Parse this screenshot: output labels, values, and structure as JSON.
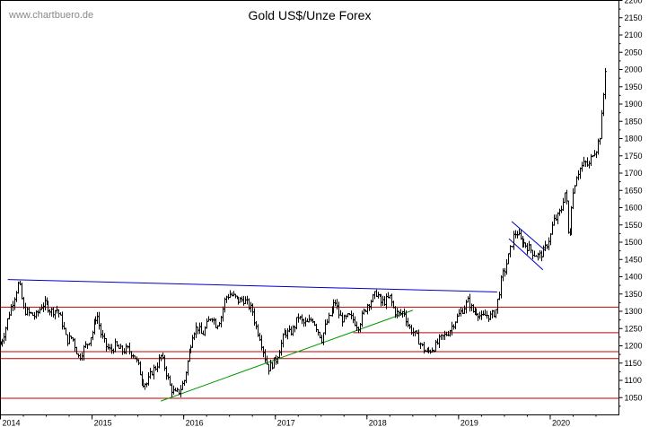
{
  "watermark": "www.chartbuero.de",
  "chart_data": {
    "type": "bar",
    "subtype": "ohlc-weekly",
    "title": "Gold US$/Unze Forex",
    "xlabel": "",
    "ylabel": "",
    "y_axis_position": "right",
    "ylim": [
      1000,
      2200
    ],
    "xlim": [
      2014.0,
      2020.75
    ],
    "yticks": [
      1050,
      1100,
      1150,
      1200,
      1250,
      1300,
      1350,
      1400,
      1450,
      1500,
      1550,
      1600,
      1650,
      1700,
      1750,
      1800,
      1850,
      1900,
      1950,
      2000,
      2050,
      2100,
      2150,
      2200
    ],
    "xticks": [
      {
        "label": "2014",
        "x": 2014.0
      },
      {
        "label": "2015",
        "x": 2015.0
      },
      {
        "label": "2016",
        "x": 2016.0
      },
      {
        "label": "2017",
        "x": 2017.0
      },
      {
        "label": "2018",
        "x": 2018.0
      },
      {
        "label": "2019",
        "x": 2019.0
      },
      {
        "label": "2020",
        "x": 2020.0
      }
    ],
    "grid": false,
    "colors": {
      "price": "#000000",
      "resistance": "#0000cc",
      "support_lines": "#c00000",
      "uptrend": "#009900",
      "channel": "#0000cc"
    },
    "series": [
      {
        "keypoints": [
          [
            2014.0,
            1205
          ],
          [
            2014.05,
            1245
          ],
          [
            2014.1,
            1300
          ],
          [
            2014.15,
            1340
          ],
          [
            2014.2,
            1385
          ],
          [
            2014.25,
            1305
          ],
          [
            2014.3,
            1295
          ],
          [
            2014.38,
            1285
          ],
          [
            2014.45,
            1320
          ],
          [
            2014.5,
            1320
          ],
          [
            2014.55,
            1300
          ],
          [
            2014.62,
            1305
          ],
          [
            2014.68,
            1260
          ],
          [
            2014.72,
            1215
          ],
          [
            2014.78,
            1225
          ],
          [
            2014.85,
            1165
          ],
          [
            2014.9,
            1190
          ],
          [
            2014.95,
            1210
          ],
          [
            2015.0,
            1240
          ],
          [
            2015.05,
            1295
          ],
          [
            2015.1,
            1230
          ],
          [
            2015.15,
            1200
          ],
          [
            2015.2,
            1185
          ],
          [
            2015.25,
            1200
          ],
          [
            2015.32,
            1185
          ],
          [
            2015.38,
            1190
          ],
          [
            2015.45,
            1175
          ],
          [
            2015.5,
            1140
          ],
          [
            2015.55,
            1095
          ],
          [
            2015.6,
            1090
          ],
          [
            2015.65,
            1125
          ],
          [
            2015.7,
            1140
          ],
          [
            2015.75,
            1170
          ],
          [
            2015.8,
            1130
          ],
          [
            2015.85,
            1080
          ],
          [
            2015.9,
            1060
          ],
          [
            2015.95,
            1070
          ],
          [
            2016.0,
            1100
          ],
          [
            2016.05,
            1170
          ],
          [
            2016.1,
            1240
          ],
          [
            2016.15,
            1255
          ],
          [
            2016.2,
            1230
          ],
          [
            2016.25,
            1260
          ],
          [
            2016.3,
            1290
          ],
          [
            2016.35,
            1260
          ],
          [
            2016.4,
            1280
          ],
          [
            2016.45,
            1340
          ],
          [
            2016.5,
            1350
          ],
          [
            2016.55,
            1340
          ],
          [
            2016.6,
            1330
          ],
          [
            2016.65,
            1335
          ],
          [
            2016.7,
            1320
          ],
          [
            2016.75,
            1300
          ],
          [
            2016.78,
            1260
          ],
          [
            2016.83,
            1225
          ],
          [
            2016.88,
            1170
          ],
          [
            2016.92,
            1135
          ],
          [
            2016.97,
            1150
          ],
          [
            2017.0,
            1160
          ],
          [
            2017.05,
            1200
          ],
          [
            2017.1,
            1240
          ],
          [
            2017.15,
            1235
          ],
          [
            2017.2,
            1250
          ],
          [
            2017.25,
            1285
          ],
          [
            2017.3,
            1265
          ],
          [
            2017.35,
            1265
          ],
          [
            2017.4,
            1280
          ],
          [
            2017.45,
            1250
          ],
          [
            2017.5,
            1220
          ],
          [
            2017.55,
            1265
          ],
          [
            2017.6,
            1290
          ],
          [
            2017.65,
            1330
          ],
          [
            2017.7,
            1285
          ],
          [
            2017.75,
            1275
          ],
          [
            2017.8,
            1285
          ],
          [
            2017.85,
            1275
          ],
          [
            2017.9,
            1255
          ],
          [
            2017.95,
            1290
          ],
          [
            2018.0,
            1320
          ],
          [
            2018.05,
            1335
          ],
          [
            2018.1,
            1355
          ],
          [
            2018.15,
            1325
          ],
          [
            2018.2,
            1330
          ],
          [
            2018.25,
            1340
          ],
          [
            2018.3,
            1300
          ],
          [
            2018.35,
            1290
          ],
          [
            2018.4,
            1300
          ],
          [
            2018.45,
            1255
          ],
          [
            2018.5,
            1240
          ],
          [
            2018.55,
            1220
          ],
          [
            2018.6,
            1195
          ],
          [
            2018.65,
            1180
          ],
          [
            2018.7,
            1190
          ],
          [
            2018.75,
            1200
          ],
          [
            2018.8,
            1220
          ],
          [
            2018.85,
            1230
          ],
          [
            2018.9,
            1245
          ],
          [
            2018.95,
            1270
          ],
          [
            2019.0,
            1290
          ],
          [
            2019.05,
            1310
          ],
          [
            2019.1,
            1330
          ],
          [
            2019.15,
            1300
          ],
          [
            2019.2,
            1300
          ],
          [
            2019.25,
            1280
          ],
          [
            2019.3,
            1290
          ],
          [
            2019.35,
            1285
          ],
          [
            2019.4,
            1300
          ],
          [
            2019.43,
            1340
          ],
          [
            2019.47,
            1400
          ],
          [
            2019.5,
            1420
          ],
          [
            2019.55,
            1470
          ],
          [
            2019.6,
            1520
          ],
          [
            2019.63,
            1530
          ],
          [
            2019.67,
            1505
          ],
          [
            2019.72,
            1495
          ],
          [
            2019.78,
            1480
          ],
          [
            2019.83,
            1465
          ],
          [
            2019.88,
            1460
          ],
          [
            2019.93,
            1475
          ],
          [
            2020.0,
            1520
          ],
          [
            2020.03,
            1560
          ],
          [
            2020.08,
            1575
          ],
          [
            2020.12,
            1600
          ],
          [
            2020.15,
            1650
          ],
          [
            2020.18,
            1600
          ],
          [
            2020.2,
            1480
          ],
          [
            2020.23,
            1610
          ],
          [
            2020.28,
            1690
          ],
          [
            2020.33,
            1715
          ],
          [
            2020.38,
            1730
          ],
          [
            2020.42,
            1720
          ],
          [
            2020.46,
            1760
          ],
          [
            2020.5,
            1770
          ],
          [
            2020.54,
            1810
          ],
          [
            2020.57,
            1900
          ],
          [
            2020.59,
            1980
          ],
          [
            2020.61,
            2050
          ]
        ]
      }
    ],
    "trendlines": [
      {
        "kind": "resistance",
        "from": [
          2014.08,
          1392
        ],
        "to": [
          2019.42,
          1356
        ]
      },
      {
        "kind": "uptrend",
        "from": [
          2015.75,
          1040
        ],
        "to": [
          2018.5,
          1303
        ]
      },
      {
        "kind": "channel-upper",
        "from": [
          2019.58,
          1560
        ],
        "to": [
          2019.95,
          1475
        ]
      },
      {
        "kind": "channel-lower",
        "from": [
          2019.55,
          1510
        ],
        "to": [
          2019.92,
          1420
        ]
      }
    ],
    "horizontal_lines": [
      {
        "y": 1312,
        "x_from": 2014.0,
        "x_to": 2020.75
      },
      {
        "y": 1238,
        "x_from": 2017.85,
        "x_to": 2020.75
      },
      {
        "y": 1183,
        "x_from": 2014.0,
        "x_to": 2020.75
      },
      {
        "y": 1163,
        "x_from": 2014.0,
        "x_to": 2020.75
      },
      {
        "y": 1048,
        "x_from": 2014.0,
        "x_to": 2020.75
      }
    ]
  }
}
